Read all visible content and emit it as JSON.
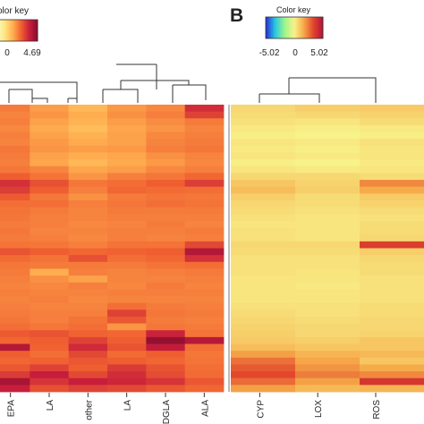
{
  "panel_b_label": "B",
  "chart_data": [
    {
      "type": "heatmap",
      "panel": "A",
      "color_key": {
        "title": "olor key",
        "tick_labels": [
          "0",
          "4.69"
        ],
        "range": [
          -4.69,
          4.69
        ],
        "colors": [
          "#f5ffd0",
          "#ffe680",
          "#ffb050",
          "#f06030",
          "#c81e3c",
          "#8b0d2e"
        ]
      },
      "columns": [
        "EPA",
        "LA",
        "other",
        "LA",
        "DGLA",
        "ALA"
      ],
      "rows": 42,
      "values": [
        [
          0.3,
          -0.5,
          -1.2,
          -0.4,
          0.0,
          2.4
        ],
        [
          0.1,
          -0.3,
          -0.9,
          -0.2,
          0.2,
          1.8
        ],
        [
          0.2,
          -0.6,
          -1.0,
          -0.5,
          -0.1,
          0.3
        ],
        [
          0.0,
          -0.8,
          -1.4,
          -0.7,
          -0.3,
          0.1
        ],
        [
          0.2,
          -0.6,
          -1.0,
          -0.6,
          0.0,
          0.2
        ],
        [
          0.1,
          -0.4,
          -0.8,
          -0.6,
          0.1,
          0.3
        ],
        [
          0.4,
          -0.3,
          -0.5,
          -0.4,
          0.2,
          0.4
        ],
        [
          0.3,
          -0.6,
          -0.9,
          -0.7,
          -0.2,
          0.1
        ],
        [
          0.2,
          -0.7,
          -1.2,
          -0.8,
          -0.4,
          0.0
        ],
        [
          0.4,
          0.1,
          -0.7,
          -0.5,
          0.0,
          0.2
        ],
        [
          1.0,
          0.5,
          -0.3,
          0.2,
          0.4,
          0.8
        ],
        [
          2.3,
          1.4,
          0.4,
          0.6,
          1.0,
          1.9
        ],
        [
          1.9,
          1.0,
          0.2,
          0.8,
          0.7,
          0.6
        ],
        [
          1.1,
          0.4,
          -0.2,
          0.3,
          0.5,
          0.4
        ],
        [
          0.6,
          0.6,
          0.2,
          0.4,
          0.6,
          0.5
        ],
        [
          0.5,
          0.3,
          0.1,
          0.3,
          0.3,
          0.3
        ],
        [
          0.4,
          0.2,
          0.1,
          0.2,
          0.2,
          0.2
        ],
        [
          0.3,
          0.2,
          0.0,
          0.1,
          0.3,
          0.1
        ],
        [
          0.4,
          0.1,
          0.1,
          0.2,
          0.2,
          0.3
        ],
        [
          0.3,
          0.2,
          0.0,
          0.2,
          0.1,
          0.2
        ],
        [
          0.5,
          0.4,
          0.2,
          0.5,
          0.5,
          1.6
        ],
        [
          1.3,
          1.0,
          0.8,
          0.9,
          1.0,
          3.5
        ],
        [
          0.7,
          0.5,
          1.4,
          0.6,
          0.8,
          2.3
        ],
        [
          0.4,
          0.3,
          0.3,
          0.3,
          0.5,
          0.6
        ],
        [
          0.3,
          -0.9,
          0.2,
          0.1,
          0.2,
          0.3
        ],
        [
          0.2,
          -0.2,
          -0.6,
          0.1,
          0.1,
          0.2
        ],
        [
          0.1,
          0.0,
          0.2,
          0.0,
          0.3,
          0.1
        ],
        [
          0.2,
          0.1,
          0.1,
          0.2,
          0.2,
          0.2
        ],
        [
          0.1,
          0.2,
          0.0,
          0.1,
          0.1,
          0.1
        ],
        [
          0.2,
          0.1,
          0.1,
          0.6,
          0.3,
          0.2
        ],
        [
          0.3,
          0.2,
          0.2,
          1.8,
          0.4,
          0.3
        ],
        [
          0.4,
          0.2,
          0.5,
          1.2,
          0.3,
          0.2
        ],
        [
          0.6,
          0.4,
          0.6,
          -0.3,
          0.4,
          0.3
        ],
        [
          1.1,
          1.3,
          0.9,
          0.8,
          2.7,
          0.5
        ],
        [
          0.8,
          1.0,
          1.8,
          1.0,
          4.4,
          3.4
        ],
        [
          3.5,
          0.9,
          2.5,
          1.3,
          3.0,
          0.6
        ],
        [
          1.0,
          0.6,
          1.6,
          0.7,
          1.0,
          0.4
        ],
        [
          0.8,
          0.9,
          1.2,
          1.0,
          0.8,
          0.5
        ],
        [
          1.2,
          1.8,
          1.0,
          2.0,
          1.3,
          0.6
        ],
        [
          2.0,
          2.9,
          1.6,
          2.4,
          1.5,
          0.7
        ],
        [
          3.8,
          2.2,
          2.8,
          2.6,
          2.2,
          1.2
        ],
        [
          2.8,
          1.4,
          1.8,
          1.6,
          1.2,
          0.8
        ]
      ]
    },
    {
      "type": "heatmap",
      "panel": "B",
      "color_key": {
        "title": "Color key",
        "tick_labels": [
          "-5.02",
          "0",
          "5.02"
        ],
        "range": [
          -5.02,
          5.02
        ],
        "colors": [
          "#2a2ad8",
          "#27c9e0",
          "#9ef58a",
          "#f8f28a",
          "#f6a848",
          "#e2452c",
          "#b3123c"
        ]
      },
      "columns": [
        "CYP",
        "LOX",
        "ROS"
      ],
      "rows": 42,
      "values": [
        [
          0.6,
          0.8,
          0.9
        ],
        [
          0.5,
          0.6,
          0.7
        ],
        [
          0.4,
          0.3,
          0.5
        ],
        [
          0.2,
          0.1,
          0.2
        ],
        [
          0.1,
          0.0,
          0.1
        ],
        [
          0.3,
          0.2,
          0.4
        ],
        [
          0.2,
          0.1,
          0.3
        ],
        [
          0.3,
          0.2,
          0.3
        ],
        [
          0.1,
          0.0,
          0.2
        ],
        [
          0.3,
          0.2,
          0.3
        ],
        [
          0.6,
          0.6,
          0.5
        ],
        [
          1.0,
          0.7,
          2.2
        ],
        [
          1.2,
          0.8,
          1.6
        ],
        [
          0.8,
          0.5,
          0.9
        ],
        [
          0.6,
          0.5,
          0.7
        ],
        [
          0.5,
          0.4,
          0.5
        ],
        [
          0.4,
          0.3,
          0.4
        ],
        [
          0.3,
          0.3,
          0.5
        ],
        [
          0.4,
          0.3,
          0.5
        ],
        [
          0.4,
          0.3,
          0.6
        ],
        [
          0.6,
          0.6,
          3.6
        ],
        [
          0.5,
          0.5,
          0.8
        ],
        [
          0.4,
          0.4,
          0.6
        ],
        [
          0.4,
          0.4,
          0.5
        ],
        [
          0.4,
          0.3,
          0.5
        ],
        [
          0.3,
          0.3,
          0.4
        ],
        [
          0.3,
          0.2,
          0.4
        ],
        [
          0.3,
          0.3,
          0.4
        ],
        [
          0.3,
          0.3,
          0.4
        ],
        [
          0.4,
          0.4,
          0.5
        ],
        [
          0.5,
          0.4,
          0.5
        ],
        [
          0.6,
          0.5,
          0.6
        ],
        [
          0.7,
          0.6,
          0.6
        ],
        [
          0.8,
          0.6,
          0.7
        ],
        [
          0.9,
          0.8,
          1.0
        ],
        [
          1.2,
          1.0,
          1.0
        ],
        [
          1.8,
          1.4,
          1.3
        ],
        [
          2.6,
          1.7,
          1.0
        ],
        [
          3.0,
          2.0,
          1.6
        ],
        [
          3.3,
          2.4,
          2.2
        ],
        [
          2.7,
          1.8,
          3.8
        ],
        [
          1.8,
          1.3,
          1.4
        ]
      ]
    }
  ]
}
